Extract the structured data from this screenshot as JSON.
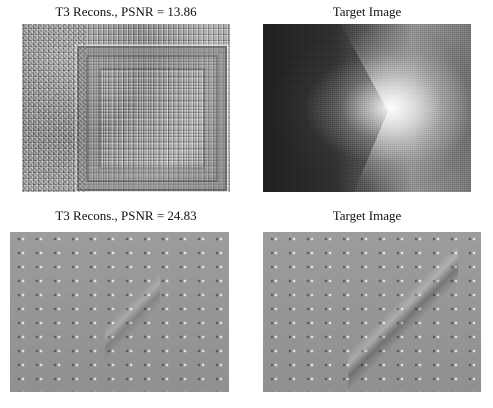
{
  "figure": {
    "top_left_title": "T3 Recons., PSNR = 13.86",
    "top_right_title": "Target Image",
    "bottom_left_title": "T3 Recons., PSNR = 24.83",
    "bottom_right_title": "Target Image"
  }
}
